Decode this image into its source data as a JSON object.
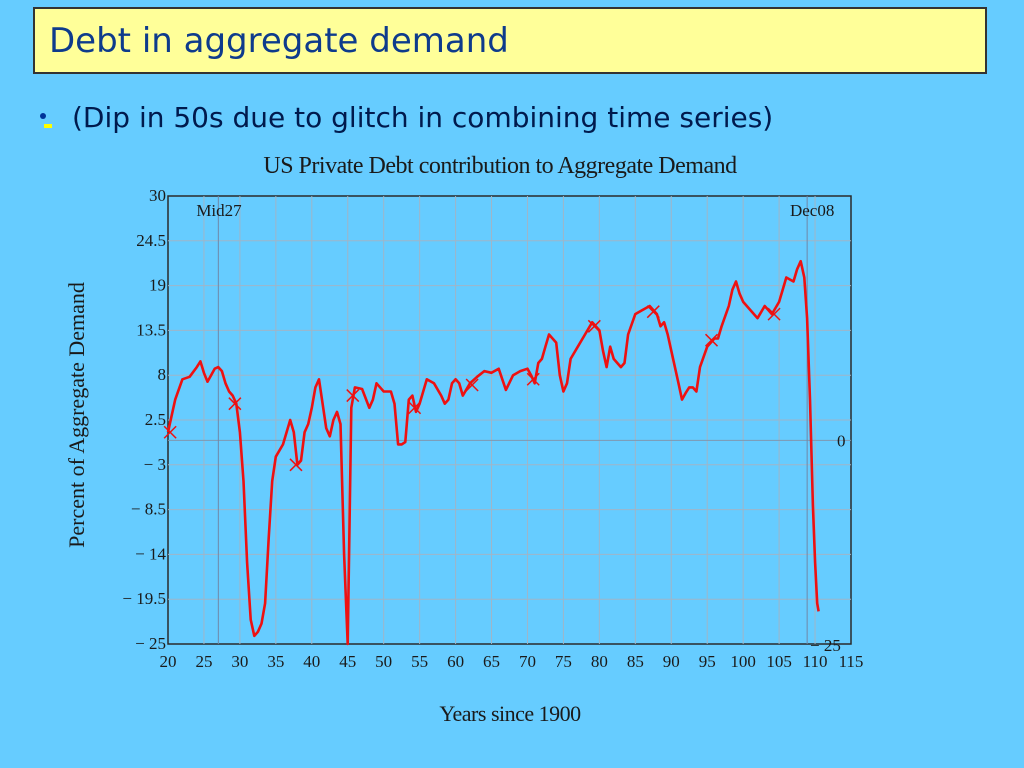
{
  "slide": {
    "title": "Debt in aggregate demand",
    "bullet": "(Dip in 50s due to glitch in combining time series)"
  },
  "colors": {
    "background": "#66ccff",
    "title_box": "#ffff99",
    "title_text": "#0e3b8c",
    "series": "#ee1111",
    "grid": "#9fb5c8"
  },
  "chart_data": {
    "type": "line",
    "title": "US Private Debt contribution to Aggregate Demand",
    "xlabel": "Years since 1900",
    "ylabel": "Percent of Aggregate Demand",
    "xlim": [
      20,
      115
    ],
    "ylim": [
      -25,
      30
    ],
    "x_ticks": [
      "20",
      "25",
      "30",
      "35",
      "40",
      "45",
      "50",
      "55",
      "60",
      "65",
      "70",
      "75",
      "80",
      "85",
      "90",
      "95",
      "100",
      "105",
      "110",
      "115"
    ],
    "y_ticks": [
      "30",
      "24.5",
      "19",
      "13.5",
      "8",
      "2.5",
      "− 3",
      "− 8.5",
      "− 14",
      "− 19.5",
      "− 25"
    ],
    "right_labels": [
      "0",
      "− 25"
    ],
    "annotations": [
      {
        "text": "Mid27",
        "x": 27
      },
      {
        "text": "Dec08",
        "x": 108.9
      }
    ],
    "grid": true,
    "series": [
      {
        "values": [
          [
            20.0,
            1.0
          ],
          [
            20.5,
            3.0
          ],
          [
            21.0,
            5.0
          ],
          [
            22.0,
            7.5
          ],
          [
            23.0,
            7.8
          ],
          [
            24.0,
            9.0
          ],
          [
            24.5,
            9.7
          ],
          [
            25.0,
            8.3
          ],
          [
            25.5,
            7.2
          ],
          [
            26.0,
            8.0
          ],
          [
            26.5,
            8.8
          ],
          [
            27.0,
            9.0
          ],
          [
            27.5,
            8.5
          ],
          [
            28.0,
            7.0
          ],
          [
            28.5,
            6.0
          ],
          [
            29.0,
            5.5
          ],
          [
            29.5,
            4.5
          ],
          [
            30.0,
            1.0
          ],
          [
            30.5,
            -5.0
          ],
          [
            31.0,
            -15.0
          ],
          [
            31.5,
            -22.0
          ],
          [
            32.0,
            -24.0
          ],
          [
            32.5,
            -23.5
          ],
          [
            33.0,
            -22.5
          ],
          [
            33.5,
            -20.0
          ],
          [
            34.0,
            -12.0
          ],
          [
            34.5,
            -5.0
          ],
          [
            35.0,
            -2.0
          ],
          [
            36.0,
            -0.5
          ],
          [
            37.0,
            2.5
          ],
          [
            37.5,
            1.0
          ],
          [
            38.0,
            -3.0
          ],
          [
            38.5,
            -2.5
          ],
          [
            39.0,
            1.0
          ],
          [
            39.5,
            2.0
          ],
          [
            40.0,
            4.0
          ],
          [
            40.5,
            6.5
          ],
          [
            41.0,
            7.5
          ],
          [
            41.5,
            4.5
          ],
          [
            42.0,
            1.5
          ],
          [
            42.5,
            0.5
          ],
          [
            43.0,
            2.5
          ],
          [
            43.5,
            3.5
          ],
          [
            44.0,
            2.0
          ],
          [
            44.5,
            -14.0
          ],
          [
            45.0,
            -25.0
          ],
          [
            45.5,
            4.0
          ],
          [
            46.0,
            6.5
          ],
          [
            47.0,
            6.3
          ],
          [
            48.0,
            4.0
          ],
          [
            48.5,
            5.0
          ],
          [
            49.0,
            7.0
          ],
          [
            50.0,
            6.0
          ],
          [
            51.0,
            6.0
          ],
          [
            51.5,
            4.5
          ],
          [
            52.0,
            -0.5
          ],
          [
            52.5,
            -0.5
          ],
          [
            53.0,
            -0.2
          ],
          [
            53.5,
            5.0
          ],
          [
            54.0,
            5.5
          ],
          [
            54.5,
            3.5
          ],
          [
            55.0,
            4.5
          ],
          [
            56.0,
            7.5
          ],
          [
            57.0,
            7.0
          ],
          [
            58.0,
            5.5
          ],
          [
            58.5,
            4.5
          ],
          [
            59.0,
            5.0
          ],
          [
            59.5,
            7.0
          ],
          [
            60.0,
            7.5
          ],
          [
            60.5,
            7.0
          ],
          [
            61.0,
            5.5
          ],
          [
            62.0,
            7.0
          ],
          [
            63.0,
            7.8
          ],
          [
            64.0,
            8.5
          ],
          [
            65.0,
            8.3
          ],
          [
            66.0,
            8.8
          ],
          [
            66.5,
            7.5
          ],
          [
            67.0,
            6.2
          ],
          [
            68.0,
            8.0
          ],
          [
            69.0,
            8.5
          ],
          [
            70.0,
            8.8
          ],
          [
            70.5,
            8.0
          ],
          [
            71.0,
            7.0
          ],
          [
            71.5,
            9.5
          ],
          [
            72.0,
            10.0
          ],
          [
            72.5,
            11.5
          ],
          [
            73.0,
            13.0
          ],
          [
            74.0,
            12.0
          ],
          [
            74.5,
            8.0
          ],
          [
            75.0,
            6.0
          ],
          [
            75.5,
            7.0
          ],
          [
            76.0,
            10.0
          ],
          [
            77.0,
            11.5
          ],
          [
            78.0,
            13.0
          ],
          [
            79.0,
            14.5
          ],
          [
            80.0,
            13.5
          ],
          [
            80.5,
            11.0
          ],
          [
            81.0,
            9.0
          ],
          [
            81.5,
            11.5
          ],
          [
            82.0,
            10.0
          ],
          [
            83.0,
            9.0
          ],
          [
            83.5,
            9.5
          ],
          [
            84.0,
            13.0
          ],
          [
            85.0,
            15.5
          ],
          [
            86.0,
            16.0
          ],
          [
            87.0,
            16.5
          ],
          [
            88.0,
            15.5
          ],
          [
            88.5,
            14.0
          ],
          [
            89.0,
            14.5
          ],
          [
            89.5,
            13.0
          ],
          [
            90.0,
            11.0
          ],
          [
            91.0,
            7.0
          ],
          [
            91.5,
            5.0
          ],
          [
            92.0,
            5.8
          ],
          [
            92.5,
            6.5
          ],
          [
            93.0,
            6.5
          ],
          [
            93.5,
            6.0
          ],
          [
            94.0,
            9.0
          ],
          [
            95.0,
            11.5
          ],
          [
            95.5,
            12.0
          ],
          [
            96.0,
            12.5
          ],
          [
            96.5,
            12.5
          ],
          [
            97.0,
            14.0
          ],
          [
            98.0,
            16.5
          ],
          [
            98.5,
            18.5
          ],
          [
            99.0,
            19.5
          ],
          [
            99.5,
            18.0
          ],
          [
            100.0,
            17.0
          ],
          [
            101.0,
            16.0
          ],
          [
            102.0,
            15.0
          ],
          [
            103.0,
            16.5
          ],
          [
            103.5,
            16.0
          ],
          [
            104.0,
            15.5
          ],
          [
            105.0,
            17.0
          ],
          [
            105.5,
            18.5
          ],
          [
            106.0,
            20.0
          ],
          [
            107.0,
            19.5
          ],
          [
            107.5,
            21.0
          ],
          [
            108.0,
            22.0
          ],
          [
            108.5,
            20.0
          ],
          [
            108.9,
            15.0
          ],
          [
            109.3,
            5.0
          ],
          [
            109.7,
            -8.0
          ],
          [
            110.0,
            -15.0
          ],
          [
            110.3,
            -20.0
          ],
          [
            110.5,
            -21.0
          ]
        ],
        "markers": [
          [
            20.3,
            1.0
          ],
          [
            29.3,
            4.5
          ],
          [
            37.8,
            -3.0
          ],
          [
            45.7,
            5.5
          ],
          [
            54.3,
            4.0
          ],
          [
            62.3,
            6.8
          ],
          [
            70.8,
            7.5
          ],
          [
            79.3,
            14.0
          ],
          [
            87.5,
            15.8
          ],
          [
            95.6,
            12.3
          ],
          [
            104.3,
            15.5
          ]
        ]
      }
    ]
  }
}
